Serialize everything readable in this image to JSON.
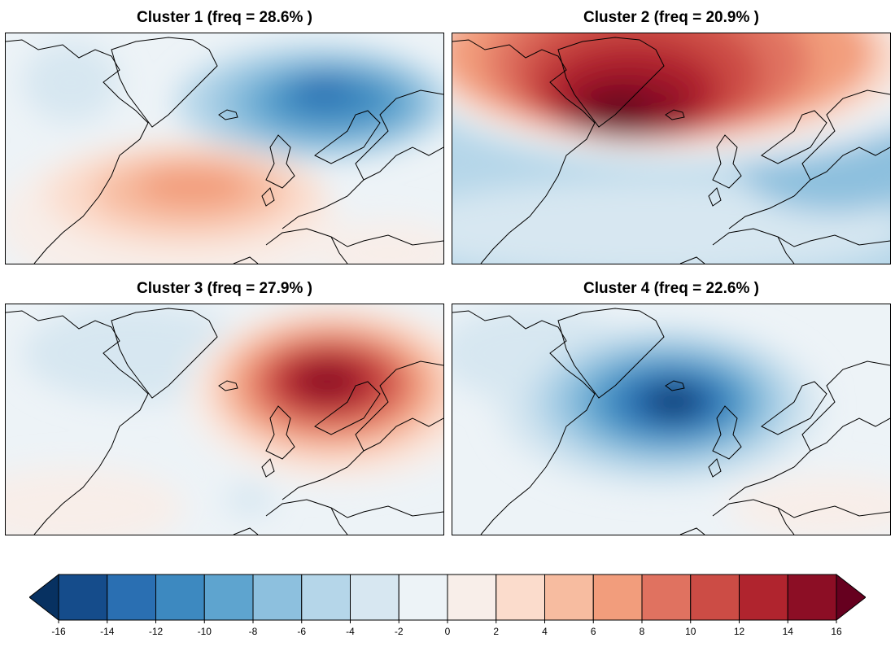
{
  "panels": [
    {
      "title": "Cluster 1 (freq = 28.6% )",
      "pattern": "blue-high-latitude-dipole"
    },
    {
      "title": "Cluster 2 (freq = 20.9% )",
      "pattern": "red-greenland-blocking"
    },
    {
      "title": "Cluster 3 (freq = 27.9% )",
      "pattern": "red-scandinavian-blocking"
    },
    {
      "title": "Cluster 4 (freq = 22.6% )",
      "pattern": "blue-atlantic-ridge-low"
    }
  ],
  "colorbar": {
    "ticks": [
      "-16",
      "-14",
      "-12",
      "-10",
      "-8",
      "-6",
      "-4",
      "-2",
      "0",
      "2",
      "4",
      "6",
      "8",
      "10",
      "12",
      "14",
      "16"
    ],
    "colors": [
      "#154c8b",
      "#2a6fb2",
      "#3d89c0",
      "#5ea4cf",
      "#8dc0de",
      "#b5d6e9",
      "#d7e7f1",
      "#edf3f7",
      "#f8eee9",
      "#fbdccc",
      "#f7bca0",
      "#f29d7c",
      "#e07260",
      "#cc4c45",
      "#b0242e",
      "#8c0e25"
    ],
    "under_color": "#073161",
    "over_color": "#66001f"
  }
}
